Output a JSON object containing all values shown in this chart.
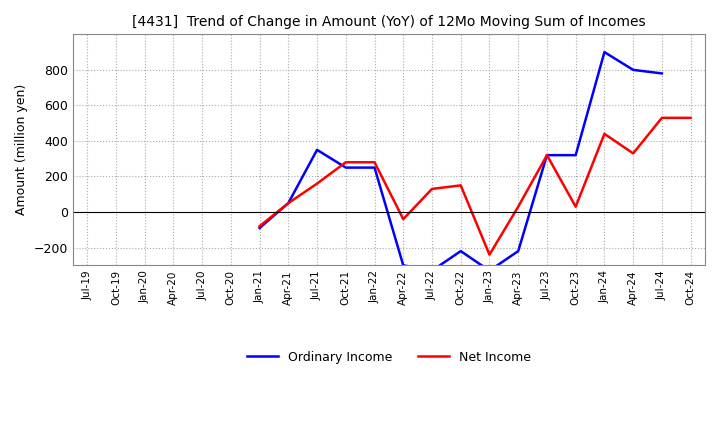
{
  "title": "[4431]  Trend of Change in Amount (YoY) of 12Mo Moving Sum of Incomes",
  "ylabel": "Amount (million yen)",
  "ylim": [
    -300,
    1000
  ],
  "yticks": [
    -200,
    0,
    200,
    400,
    600,
    800
  ],
  "legend_labels": [
    "Ordinary Income",
    "Net Income"
  ],
  "line_colors": [
    "#0000ff",
    "#ff0000"
  ],
  "x_labels": [
    "Jul-19",
    "Oct-19",
    "Jan-20",
    "Apr-20",
    "Jul-20",
    "Oct-20",
    "Jan-21",
    "Apr-21",
    "Jul-21",
    "Oct-21",
    "Jan-22",
    "Apr-22",
    "Jul-22",
    "Oct-22",
    "Jan-23",
    "Apr-23",
    "Jul-23",
    "Oct-23",
    "Jan-24",
    "Apr-24",
    "Jul-24",
    "Oct-24"
  ],
  "oi_x_indices": [
    6,
    7,
    8,
    9,
    10,
    11,
    12,
    13,
    14,
    15,
    16,
    17,
    18,
    19,
    20
  ],
  "oi_y": [
    -90,
    50,
    350,
    250,
    250,
    -300,
    -330,
    -220,
    -330,
    -220,
    320,
    320,
    900,
    800,
    780
  ],
  "ni_x_indices": [
    6,
    7,
    8,
    9,
    10,
    11,
    12,
    13,
    14,
    15,
    16,
    17,
    18,
    19,
    20,
    21
  ],
  "ni_y": [
    -80,
    50,
    160,
    280,
    280,
    -40,
    130,
    150,
    -240,
    30,
    320,
    30,
    440,
    330,
    530,
    530
  ],
  "background_color": "#ffffff",
  "grid_color": "#aaaaaa",
  "figsize": [
    7.2,
    4.4
  ],
  "dpi": 100
}
